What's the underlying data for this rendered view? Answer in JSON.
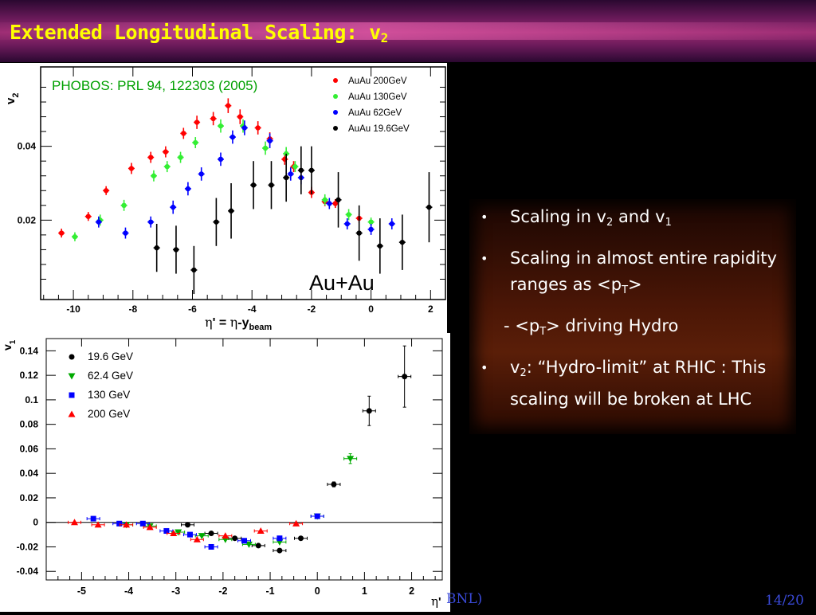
{
  "title": {
    "main": "Extended Longitudinal Scaling: v",
    "sub": "2"
  },
  "bullets": [
    {
      "text": "Scaling in v",
      "s1": "2",
      "mid": " and v",
      "s2": "1",
      "tail": ""
    },
    {
      "text": "Scaling in almost entire rapidity ranges as <p",
      "s1": "T",
      "mid": ">",
      "s2": "",
      "tail": ""
    },
    {
      "text": "- <p",
      "s1": "T",
      "mid": "> driving Hydro",
      "s2": "",
      "tail": ""
    },
    {
      "text": "v",
      "s1": "2",
      "mid": ": “Hydro-limit” at RHIC : This scaling will be broken at LHC",
      "s2": "",
      "tail": ""
    }
  ],
  "footer": {
    "source_tail": "BNL)",
    "page": "14/20"
  },
  "colors": {
    "red": "#ff0000",
    "green": "#33ee33",
    "blue": "#0000ff",
    "black": "#000000",
    "title": "#ffff00"
  },
  "chart_data": [
    {
      "type": "scatter",
      "annotation": "PHOBOS: PRL 94, 122303 (2005)",
      "system_label": "Au+Au",
      "ylabel_main": "v",
      "ylabel_sub": "2",
      "xlabel": {
        "eta": "η",
        "p1": "' = ",
        "eta2": "η",
        "p2": "-y",
        "sub": "beam"
      },
      "xlim": [
        -11.1,
        2.5
      ],
      "ylim": [
        -0.0015,
        0.0615
      ],
      "xticks": [
        -10,
        -8,
        -6,
        -4,
        -2,
        0,
        2
      ],
      "xtick_labels": [
        "-10",
        "-8",
        "-6",
        "-4",
        "-2",
        "0",
        "2"
      ],
      "yticks": [
        0.02,
        0.04
      ],
      "ytick_labels": [
        "0.02",
        "0.04"
      ],
      "legend_placement": "top-right",
      "series": [
        {
          "name": "AuAu 200GeV",
          "color": "#ff0000",
          "points": [
            [
              -10.4,
              0.0165,
              0.0012
            ],
            [
              -9.5,
              0.021,
              0.0012
            ],
            [
              -8.9,
              0.028,
              0.0012
            ],
            [
              -8.05,
              0.034,
              0.0015
            ],
            [
              -7.4,
              0.037,
              0.0015
            ],
            [
              -6.9,
              0.0385,
              0.0015
            ],
            [
              -6.3,
              0.0435,
              0.0015
            ],
            [
              -5.85,
              0.0465,
              0.0018
            ],
            [
              -5.3,
              0.0475,
              0.0018
            ],
            [
              -4.8,
              0.051,
              0.002
            ],
            [
              -4.4,
              0.048,
              0.002
            ],
            [
              -3.8,
              0.045,
              0.0018
            ],
            [
              -3.4,
              0.042,
              0.0018
            ],
            [
              -2.9,
              0.0365,
              0.0015
            ],
            [
              -2.6,
              0.0345,
              0.0015
            ],
            [
              -2.0,
              0.0275,
              0.0015
            ],
            [
              -1.55,
              0.025,
              0.0012
            ],
            [
              -1.2,
              0.0245,
              0.0012
            ],
            [
              -0.4,
              0.0205,
              0.0012
            ]
          ]
        },
        {
          "name": "AuAu 130GeV",
          "color": "#33ee33",
          "points": [
            [
              -9.95,
              0.0155,
              0.0012
            ],
            [
              -9.1,
              0.02,
              0.0015
            ],
            [
              -8.3,
              0.024,
              0.0015
            ],
            [
              -7.3,
              0.032,
              0.0015
            ],
            [
              -6.85,
              0.0345,
              0.0015
            ],
            [
              -6.4,
              0.037,
              0.0015
            ],
            [
              -5.9,
              0.041,
              0.0015
            ],
            [
              -5.05,
              0.0455,
              0.0018
            ],
            [
              -4.3,
              0.0455,
              0.0018
            ],
            [
              -3.55,
              0.0395,
              0.0018
            ],
            [
              -2.85,
              0.038,
              0.0018
            ],
            [
              -2.55,
              0.0345,
              0.0015
            ],
            [
              -1.55,
              0.0255,
              0.0015
            ],
            [
              -0.75,
              0.0215,
              0.0015
            ],
            [
              0.0,
              0.0195,
              0.0012
            ]
          ]
        },
        {
          "name": "AuAu 62GeV",
          "color": "#0000ff",
          "points": [
            [
              -9.15,
              0.0195,
              0.0015
            ],
            [
              -8.25,
              0.0165,
              0.0015
            ],
            [
              -7.4,
              0.0195,
              0.0015
            ],
            [
              -6.65,
              0.0235,
              0.0018
            ],
            [
              -6.15,
              0.0285,
              0.0018
            ],
            [
              -5.7,
              0.0325,
              0.0018
            ],
            [
              -5.05,
              0.0365,
              0.0018
            ],
            [
              -4.65,
              0.0425,
              0.0018
            ],
            [
              -4.25,
              0.045,
              0.002
            ],
            [
              -3.4,
              0.0415,
              0.002
            ],
            [
              -2.7,
              0.0325,
              0.0018
            ],
            [
              -2.35,
              0.0315,
              0.0018
            ],
            [
              -1.4,
              0.0245,
              0.0015
            ],
            [
              -0.8,
              0.019,
              0.0015
            ],
            [
              0.0,
              0.0175,
              0.0015
            ],
            [
              0.7,
              0.019,
              0.0015
            ]
          ]
        },
        {
          "name": "AuAu 19.6GeV",
          "color": "#000000",
          "points": [
            [
              -7.2,
              0.0125,
              0.0065
            ],
            [
              -6.55,
              0.012,
              0.0065
            ],
            [
              -5.95,
              0.0065,
              0.0065
            ],
            [
              -5.2,
              0.0195,
              0.0065
            ],
            [
              -4.7,
              0.0225,
              0.0075
            ],
            [
              -3.95,
              0.0295,
              0.0065
            ],
            [
              -3.35,
              0.0295,
              0.0065
            ],
            [
              -2.85,
              0.0315,
              0.0065
            ],
            [
              -2.35,
              0.0335,
              0.0065
            ],
            [
              -2.0,
              0.0335,
              0.0065
            ],
            [
              -1.1,
              0.0255,
              0.0075
            ],
            [
              -0.4,
              0.0165,
              0.0075
            ],
            [
              0.3,
              0.013,
              0.0075
            ],
            [
              1.05,
              0.014,
              0.0075
            ],
            [
              1.95,
              0.0235,
              0.0095
            ]
          ]
        }
      ]
    },
    {
      "type": "scatter",
      "ylabel_main": "v",
      "ylabel_sub": "1",
      "xlabel": {
        "eta": "η",
        "p1": "'"
      },
      "xlim": [
        -5.75,
        2.65
      ],
      "ylim": [
        -0.047,
        0.15
      ],
      "xticks": [
        -5,
        -4,
        -3,
        -2,
        -1,
        0,
        1,
        2
      ],
      "xtick_labels": [
        "-5",
        "-4",
        "-3",
        "-2",
        "-1",
        "0",
        "1",
        "2"
      ],
      "yticks": [
        -0.04,
        -0.02,
        0,
        0.02,
        0.04,
        0.06,
        0.08,
        0.1,
        0.12,
        0.14
      ],
      "ytick_labels": [
        "-0.04",
        "-0.02",
        "0",
        "0.02",
        "0.04",
        "0.06",
        "0.08",
        "0.1",
        "0.12",
        "0.14"
      ],
      "legend_placement": "top-left",
      "series": [
        {
          "name": "19.6 GeV",
          "color": "#000000",
          "marker": "circle",
          "points": [
            [
              -2.75,
              -0.002,
              0.001
            ],
            [
              -2.25,
              -0.009,
              0.001
            ],
            [
              -1.75,
              -0.013,
              0.001
            ],
            [
              -1.25,
              -0.019,
              0.001
            ],
            [
              -0.8,
              -0.023,
              0.001
            ],
            [
              -0.35,
              -0.013,
              0.001
            ],
            [
              0.35,
              0.031,
              0.002
            ],
            [
              1.1,
              0.091,
              0.012
            ],
            [
              1.85,
              0.119,
              0.025
            ]
          ]
        },
        {
          "name": "62.4 GeV",
          "color": "#00aa00",
          "marker": "triangle-down",
          "points": [
            [
              -4.05,
              -0.002,
              0.001
            ],
            [
              -3.55,
              -0.003,
              0.001
            ],
            [
              -2.95,
              -0.008,
              0.001
            ],
            [
              -2.45,
              -0.011,
              0.001
            ],
            [
              -1.95,
              -0.014,
              0.001
            ],
            [
              -1.45,
              -0.018,
              0.001
            ],
            [
              -0.8,
              -0.016,
              0.001
            ],
            [
              0.0,
              0.005,
              0.001
            ],
            [
              0.7,
              0.052,
              0.004
            ]
          ]
        },
        {
          "name": "130 GeV",
          "color": "#0000ff",
          "marker": "square",
          "points": [
            [
              -4.75,
              0.003,
              0.001
            ],
            [
              -4.2,
              -0.001,
              0.001
            ],
            [
              -3.7,
              -0.001,
              0.001
            ],
            [
              -3.2,
              -0.007,
              0.001
            ],
            [
              -2.7,
              -0.01,
              0.001
            ],
            [
              -2.25,
              -0.02,
              0.001
            ],
            [
              -1.55,
              -0.015,
              0.001
            ],
            [
              -0.8,
              -0.013,
              0.001
            ],
            [
              0.0,
              0.005,
              0.001
            ]
          ]
        },
        {
          "name": "200 GeV",
          "color": "#ff0000",
          "marker": "triangle-up",
          "points": [
            [
              -5.15,
              0.0,
              0.001
            ],
            [
              -4.65,
              -0.002,
              0.001
            ],
            [
              -4.05,
              -0.002,
              0.001
            ],
            [
              -3.55,
              -0.004,
              0.001
            ],
            [
              -3.05,
              -0.009,
              0.001
            ],
            [
              -2.55,
              -0.014,
              0.001
            ],
            [
              -1.95,
              -0.011,
              0.001
            ],
            [
              -1.2,
              -0.007,
              0.001
            ],
            [
              -0.45,
              -0.001,
              0.001
            ]
          ]
        }
      ]
    }
  ]
}
